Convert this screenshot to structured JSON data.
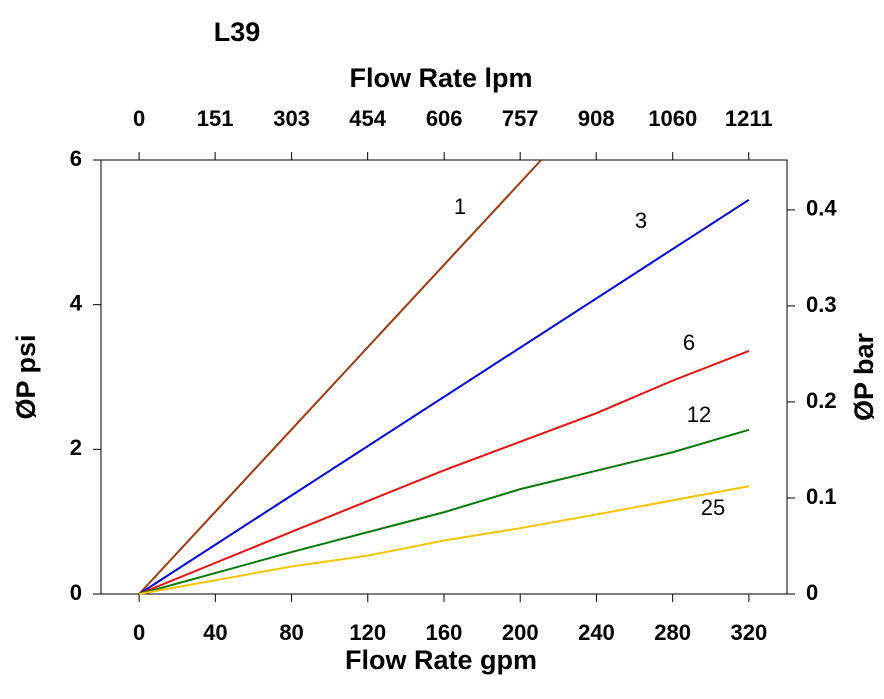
{
  "chart_data": {
    "type": "line",
    "title": "L39",
    "xlabel": "Flow Rate gpm",
    "x2label": "Flow Rate lpm",
    "ylabel": "ØP psi",
    "y2label": "ØP bar",
    "xlim": [
      -20,
      340
    ],
    "xticks": [
      0,
      40,
      80,
      120,
      160,
      200,
      240,
      280,
      320
    ],
    "x2lim": [
      -75.7,
      1287
    ],
    "x2ticks": [
      0,
      151,
      303,
      454,
      606,
      757,
      908,
      1060,
      1211
    ],
    "ylim": [
      0,
      6
    ],
    "yticks": [
      0,
      2,
      4,
      6
    ],
    "y2lim": [
      0,
      0.452
    ],
    "y2ticks": [
      0,
      0.1,
      0.2,
      0.3,
      0.4
    ],
    "grid": false,
    "series": [
      {
        "name": "1",
        "color": "#a0380e",
        "x": [
          0,
          211
        ],
        "values": [
          0,
          6
        ]
      },
      {
        "name": "3",
        "color": "#0000e0",
        "x": [
          0,
          320
        ],
        "values": [
          0,
          5.45
        ]
      },
      {
        "name": "6",
        "color": "#e81010",
        "x": [
          0,
          80,
          160,
          240,
          280,
          320
        ],
        "values": [
          0,
          0.86,
          1.71,
          2.5,
          2.95,
          3.36
        ]
      },
      {
        "name": "12",
        "color": "#0a7a0a",
        "x": [
          0,
          80,
          160,
          200,
          280,
          320
        ],
        "values": [
          0,
          0.58,
          1.13,
          1.45,
          1.96,
          2.27
        ]
      },
      {
        "name": "25",
        "color": "#f5c400",
        "x": [
          0,
          80,
          120,
          160,
          200,
          240,
          320
        ],
        "values": [
          0,
          0.38,
          0.53,
          0.74,
          0.91,
          1.1,
          1.49
        ]
      }
    ]
  }
}
